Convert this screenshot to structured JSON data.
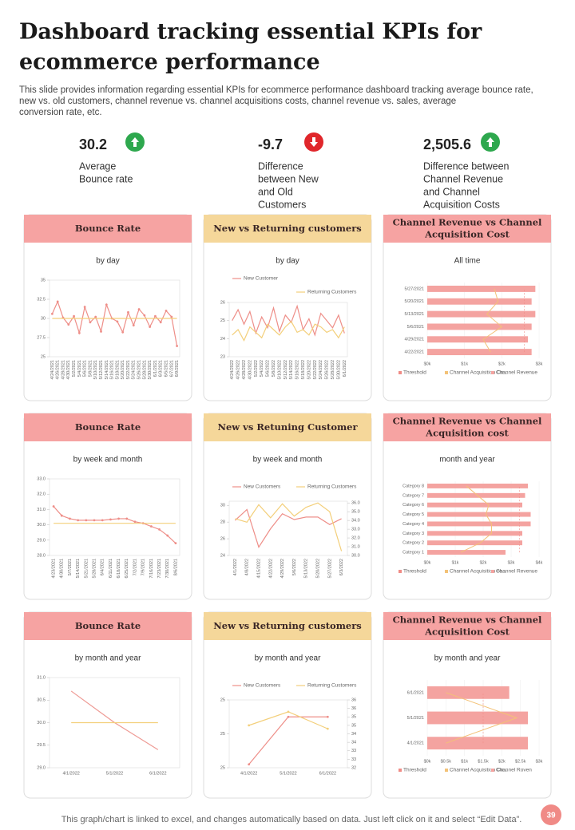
{
  "header": {
    "title_lines": [
      "Dashboard tracking essential KPIs for",
      "ecommerce performance"
    ],
    "description_lines": [
      "This slide provides information regarding essential KPIs for ecommerce performance dashboard tracking average bounce rate,",
      "new vs.  old customers, channel revenue vs. channel acquisitions costs, channel revenue vs. sales, average",
      "conversion rate, etc."
    ]
  },
  "kpis": [
    {
      "value": "30.2",
      "label_lines": [
        "Average",
        "Bounce rate"
      ],
      "color": "#2ea84e",
      "direction": "up"
    },
    {
      "value": "-9.7",
      "label_lines": [
        "Difference",
        "between New",
        "and Old",
        "Customers"
      ],
      "color": "#e0262b",
      "direction": "down"
    },
    {
      "value": "2,505.6",
      "label_lines": [
        "Difference  between",
        "Channel Revenue",
        "and Channel",
        "Acquisition Costs"
      ],
      "color": "#2ea84e",
      "direction": "up"
    }
  ],
  "panels": [
    {
      "title_lines": [
        "Bounce Rate"
      ],
      "header_color": "#f6a3a2",
      "subtitle": "by day",
      "chart": {
        "type": "line",
        "categories": [
          "4/24/2021",
          "4/26/2021",
          "4/28/2021",
          "4/30/2021",
          "5/2/2021",
          "5/4/2021",
          "5/6/2021",
          "5/8/2021",
          "5/10/2021",
          "5/12/2021",
          "5/14/2021",
          "5/16/2021",
          "5/18/2021",
          "5/20/2021",
          "5/22/2021",
          "5/24/2021",
          "5/26/2021",
          "5/28/2021",
          "5/30/2021",
          "6/1/2021",
          "6/3/2021",
          "6/5/2021",
          "6/7/2021",
          "6/9/2021"
        ],
        "series": [
          {
            "color": "#ee8e88",
            "markers": true,
            "values": [
              30.6,
              32.2,
              30.1,
              29.2,
              30.3,
              28.1,
              31.5,
              29.5,
              30.2,
              28.3,
              31.8,
              30.0,
              29.6,
              28.2,
              30.8,
              29.1,
              31.2,
              30.4,
              28.9,
              30.3,
              29.5,
              31.0,
              30.2,
              26.4
            ]
          },
          {
            "color": "#f3cf7a",
            "values": [
              30,
              30,
              30,
              30,
              30,
              30,
              30,
              30,
              30,
              30,
              30,
              30,
              30,
              30,
              30,
              30,
              30,
              30,
              30,
              30,
              30,
              30,
              30,
              30
            ]
          }
        ],
        "ylim": [
          25,
          35
        ],
        "yticks": [
          25,
          27.5,
          30,
          32.5,
          35
        ]
      }
    },
    {
      "title_lines": [
        "New vs Returning customers"
      ],
      "header_color": "#f5d79a",
      "subtitle": "by day",
      "chart": {
        "type": "line",
        "categories": [
          "4/24/2022",
          "4/26/2022",
          "4/28/2022",
          "4/30/2022",
          "5/2/2022",
          "5/4/2022",
          "5/6/2022",
          "5/8/2022",
          "5/10/2022",
          "5/12/2022",
          "5/14/2022",
          "5/16/2022",
          "5/18/2022",
          "5/20/2022",
          "5/22/2022",
          "5/24/2022",
          "5/26/2022",
          "5/28/2022",
          "5/30/2022",
          "6/1/2022"
        ],
        "series": [
          {
            "name": "New Customer",
            "color": "#ee8e88",
            "values": [
              25.0,
              25.6,
              24.8,
              25.5,
              24.3,
              25.2,
              24.6,
              25.7,
              24.4,
              25.3,
              24.9,
              25.8,
              24.5,
              25.1,
              24.2,
              25.4,
              25.0,
              24.6,
              25.3,
              24.3
            ]
          },
          {
            "name": "Returning Customers",
            "color": "#f3cf7a",
            "axis": "y2",
            "values": [
              28,
              30,
              26,
              31,
              29,
              27,
              32,
              30,
              28,
              31,
              33,
              29,
              30,
              28,
              32,
              31,
              29,
              30,
              27,
              31
            ]
          }
        ],
        "ylim": [
          23,
          26
        ],
        "yticks": [
          23,
          24,
          25,
          26
        ],
        "y2lim": [
          20,
          40
        ]
      }
    },
    {
      "title_lines": [
        "Channel Revenue vs Channel",
        "Acquisition Cost"
      ],
      "header_color": "#f6a3a2",
      "subtitle": "All time",
      "chart": {
        "type": "hbar",
        "categories": [
          "4/22/2021",
          "4/29/2021",
          "5/6/2021",
          "5/13/2021",
          "5/20/2021",
          "5/27/2021"
        ],
        "series": [
          {
            "name": "Threshold",
            "color": "#f08c86",
            "style": "threshold",
            "values": [
              2.6,
              2.6,
              2.6,
              2.6,
              2.6,
              2.6
            ]
          },
          {
            "name": "Channel Acquisition Co...",
            "color": "#f3c277",
            "style": "line",
            "values": [
              1.7,
              1.5,
              2.0,
              1.6,
              1.9,
              1.8
            ]
          },
          {
            "name": "Channel Revenue",
            "color": "#f4a3a0",
            "style": "bar",
            "values": [
              2.8,
              2.7,
              2.8,
              2.9,
              2.8,
              2.9
            ]
          }
        ],
        "xlim": [
          0,
          3
        ],
        "xticks": [
          {
            "value": 0,
            "label": "$0k"
          },
          {
            "value": 1,
            "label": "$1k"
          },
          {
            "value": 2,
            "label": "$2k"
          },
          {
            "value": 3,
            "label": "$3k"
          }
        ]
      }
    },
    {
      "title_lines": [
        "Bounce Rate"
      ],
      "header_color": "#f6a3a2",
      "subtitle": "by week and month",
      "chart": {
        "type": "line",
        "categories": [
          "4/23/2021",
          "4/30/2021",
          "5/7/2021",
          "5/14/2021",
          "5/21/2021",
          "5/28/2021",
          "6/4/2021",
          "6/11/2021",
          "6/18/2021",
          "6/25/2021",
          "7/2/2021",
          "7/9/2021",
          "7/16/2021",
          "7/23/2021",
          "7/30/2021",
          "8/6/2021"
        ],
        "series": [
          {
            "color": "#ee8e88",
            "markers": true,
            "values": [
              31.2,
              30.6,
              30.4,
              30.3,
              30.3,
              30.3,
              30.3,
              30.35,
              30.4,
              30.4,
              30.2,
              30.1,
              29.9,
              29.7,
              29.3,
              28.8
            ]
          },
          {
            "color": "#f3cf7a",
            "values": [
              30.1,
              30.1,
              30.1,
              30.1,
              30.1,
              30.1,
              30.1,
              30.1,
              30.1,
              30.1,
              30.1,
              30.1,
              30.1,
              30.1,
              30.1,
              30.1
            ]
          }
        ],
        "ylim": [
          28,
          33
        ],
        "yticks": [
          {
            "value": 28,
            "label": "28.0"
          },
          {
            "value": 29,
            "label": "29.0"
          },
          {
            "value": 30,
            "label": "30.0"
          },
          {
            "value": 31,
            "label": "31.0"
          },
          {
            "value": 32,
            "label": "32.0"
          },
          {
            "value": 33,
            "label": "33.0"
          }
        ]
      }
    },
    {
      "title_lines": [
        "New vs Retuning Customer"
      ],
      "header_color": "#f5d79a",
      "subtitle": "by week and month",
      "chart": {
        "type": "line",
        "categories": [
          "4/1/2022",
          "4/8/2022",
          "4/15/2022",
          "4/22/2022",
          "4/29/2022",
          "5/6/2022",
          "5/13/2022",
          "5/20/2022",
          "5/27/2022",
          "6/3/2022"
        ],
        "series": [
          {
            "name": "New Customers",
            "color": "#ee8e88",
            "values": [
              28.2,
              29.5,
              25.0,
              27.2,
              29.0,
              28.3,
              28.6,
              28.6,
              27.7,
              28.4
            ]
          },
          {
            "name": "Returning Customers",
            "color": "#f3cf7a",
            "axis": "y2",
            "values": [
              34.2,
              33.8,
              35.8,
              34.3,
              35.9,
              34.5,
              35.5,
              36.0,
              35.0,
              30.5
            ]
          }
        ],
        "ylim": [
          24,
          30.5
        ],
        "yticks": [
          24,
          26,
          28,
          30
        ],
        "y2lim": [
          30,
          36.2
        ],
        "y2ticks": [
          {
            "value": 30,
            "label": "30.0"
          },
          {
            "value": 31,
            "label": "31.0"
          },
          {
            "value": 32,
            "label": "32.0"
          },
          {
            "value": 33,
            "label": "33.0"
          },
          {
            "value": 34,
            "label": "34.0"
          },
          {
            "value": 35,
            "label": "35.0"
          },
          {
            "value": 36,
            "label": "36.0"
          }
        ]
      }
    },
    {
      "title_lines": [
        "Channel Revenue vs Channel",
        "Acquisition cost"
      ],
      "header_color": "#f6a3a2",
      "subtitle": "month and year",
      "chart": {
        "type": "hbar",
        "categories": [
          "Category 1",
          "Category 2",
          "Category 3",
          "Category 4",
          "Category 5",
          "Category 6",
          "Category 7",
          "Category 8"
        ],
        "series": [
          {
            "name": "Threshold",
            "color": "#f08c86",
            "style": "threshold",
            "values": [
              3.3,
              3.3,
              3.3,
              3.3,
              3.3,
              3.3,
              3.3,
              3.3
            ]
          },
          {
            "name": "Channel Acquisition  co...",
            "color": "#f3c277",
            "style": "line",
            "values": [
              1.2,
              1.9,
              2.3,
              2.3,
              2.1,
              2.2,
              1.8,
              1.4
            ]
          },
          {
            "name": "Channel Revenue",
            "color": "#f4a3a0",
            "style": "bar",
            "values": [
              2.8,
              3.4,
              3.4,
              3.7,
              3.7,
              3.4,
              3.5,
              3.6
            ]
          }
        ],
        "xlim": [
          0,
          4
        ],
        "xticks": [
          {
            "value": 0,
            "label": "$0k"
          },
          {
            "value": 1,
            "label": "$1k"
          },
          {
            "value": 2,
            "label": "$2k"
          },
          {
            "value": 3,
            "label": "$3k"
          },
          {
            "value": 4,
            "label": "$4k"
          }
        ]
      }
    },
    {
      "title_lines": [
        "Bounce Rate"
      ],
      "header_color": "#f6a3a2",
      "subtitle": "by month  and year",
      "chart": {
        "type": "line",
        "categories": [
          "4/1/2022",
          "5/1/2022",
          "6/1/2022"
        ],
        "series": [
          {
            "color": "#ee9a94",
            "values": [
              30.7,
              30.0,
              29.4
            ]
          },
          {
            "color": "#f3cf7a",
            "values": [
              30.0,
              30.0,
              30.0
            ]
          }
        ],
        "ylim": [
          29,
          31
        ],
        "yticks": [
          {
            "value": 29,
            "label": "29.0"
          },
          {
            "value": 29.5,
            "label": "29.5"
          },
          {
            "value": 30,
            "label": "30.0"
          },
          {
            "value": 30.5,
            "label": "30.5"
          },
          {
            "value": 31,
            "label": "31.0"
          }
        ]
      }
    },
    {
      "title_lines": [
        "New vs Returning customers"
      ],
      "header_color": "#f5d79a",
      "subtitle": "by month  and year",
      "chart": {
        "type": "line",
        "categories": [
          "4/1/2022",
          "5/1/2022",
          "6/1/2022"
        ],
        "series": [
          {
            "name": "New Customers",
            "color": "#ee8e88",
            "markers": true,
            "values": [
              24.82,
              25.1,
              25.1
            ]
          },
          {
            "name": "Returning Customers",
            "color": "#f3cf7a",
            "axis": "y2",
            "markers": true,
            "values": [
              34.5,
              35.3,
              34.3
            ]
          }
        ],
        "ylim": [
          24.8,
          25.2
        ],
        "yticks": [
          {
            "value": 24.8,
            "label": "25"
          },
          {
            "value": 25.0,
            "label": "25"
          },
          {
            "value": 25.2,
            "label": "25"
          }
        ],
        "y2lim": [
          32,
          36
        ],
        "y2ticks": [
          {
            "value": 32,
            "label": "32"
          },
          {
            "value": 32.5,
            "label": "33"
          },
          {
            "value": 33,
            "label": "33"
          },
          {
            "value": 33.5,
            "label": "34"
          },
          {
            "value": 34,
            "label": "34"
          },
          {
            "value": 34.5,
            "label": "35"
          },
          {
            "value": 35,
            "label": "35"
          },
          {
            "value": 35.5,
            "label": "36"
          },
          {
            "value": 36,
            "label": "36"
          }
        ]
      }
    },
    {
      "title_lines": [
        "Channel Revenue vs Channel",
        "Acquisition Cost"
      ],
      "header_color": "#f6a3a2",
      "subtitle": "by month and year",
      "chart": {
        "type": "hbar",
        "categories": [
          "4/1/2021",
          "5/1/2021",
          "6/1/2021"
        ],
        "series": [
          {
            "name": "Threshold",
            "color": "#f08c86",
            "style": "threshold",
            "values": [
              1.5,
              1.5,
              1.5
            ]
          },
          {
            "name": "Channel Acquisition Co...",
            "color": "#f3c277",
            "style": "line",
            "values": [
              0.5,
              2.4,
              0.5
            ]
          },
          {
            "name": "Channel Roven",
            "color": "#f4a3a0",
            "style": "bar",
            "values": [
              2.7,
              2.7,
              2.2
            ]
          }
        ],
        "xlim": [
          0,
          3
        ],
        "xticks": [
          {
            "value": 0,
            "label": "$0k"
          },
          {
            "value": 0.5,
            "label": "$0.5k"
          },
          {
            "value": 1,
            "label": "$1k"
          },
          {
            "value": 1.5,
            "label": "$1.5k"
          },
          {
            "value": 2,
            "label": "$2k"
          },
          {
            "value": 2.5,
            "label": "$2.5k"
          },
          {
            "value": 3,
            "label": "$3k"
          }
        ]
      }
    }
  ],
  "footer": {
    "text": "This graph/chart is linked to excel,  and changes automatically based on data. Just left click on it and select “Edit Data”.",
    "page": "39"
  }
}
